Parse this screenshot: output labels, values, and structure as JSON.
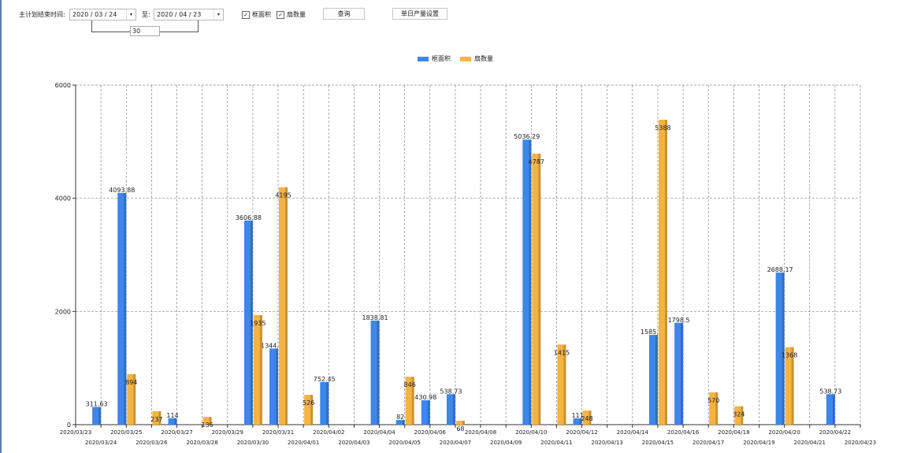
{
  "filter": {
    "label": "主计划结束时间:",
    "start_date": "2020 / 03 / 24",
    "to_label": "至:",
    "end_date": "2020 / 04 / 23",
    "days": "30",
    "checkbox_area": {
      "label": "框面积",
      "checked": true
    },
    "checkbox_count": {
      "label": "扇数量",
      "checked": true
    },
    "query_button": "查询",
    "settings_button": "单日产量设置"
  },
  "chart_data": {
    "type": "bar",
    "legend_position": "top-center",
    "grid": true,
    "ylim": [
      0,
      6000
    ],
    "yticks": [
      "0",
      "2000",
      "4000",
      "6000"
    ],
    "x": [
      "2020/03/23",
      "2020/03/24",
      "2020/03/25",
      "2020/03/26",
      "2020/03/27",
      "2020/03/28",
      "2020/03/29",
      "2020/03/30",
      "2020/03/31",
      "2020/04/01",
      "2020/04/02",
      "2020/04/03",
      "2020/04/04",
      "2020/04/05",
      "2020/04/06",
      "2020/04/07",
      "2020/04/08",
      "2020/04/09",
      "2020/04/10",
      "2020/04/11",
      "2020/04/12",
      "2020/04/13",
      "2020/04/14",
      "2020/04/15",
      "2020/04/16",
      "2020/04/17",
      "2020/04/18",
      "2020/04/19",
      "2020/04/20",
      "2020/04/21",
      "2020/04/22",
      "2020/04/23"
    ],
    "series": [
      {
        "name": "框面积",
        "color": "#3d87e8",
        "values": [
          null,
          311.63,
          4093.88,
          null,
          114,
          null,
          null,
          3606.88,
          1344.95,
          null,
          752.45,
          null,
          1838.81,
          82,
          430.98,
          538.73,
          null,
          null,
          5036.29,
          null,
          111,
          null,
          null,
          1585.96,
          1798.5,
          null,
          null,
          null,
          2688.17,
          null,
          538.73,
          null
        ]
      },
      {
        "name": "扇数量",
        "color": "#f5b342",
        "values": [
          null,
          null,
          894,
          237,
          null,
          136,
          null,
          1935,
          4195,
          526,
          null,
          null,
          null,
          846,
          null,
          68,
          null,
          null,
          4787,
          1415,
          248,
          null,
          null,
          5388,
          null,
          570,
          324,
          null,
          1368,
          null,
          null,
          null
        ]
      }
    ]
  }
}
